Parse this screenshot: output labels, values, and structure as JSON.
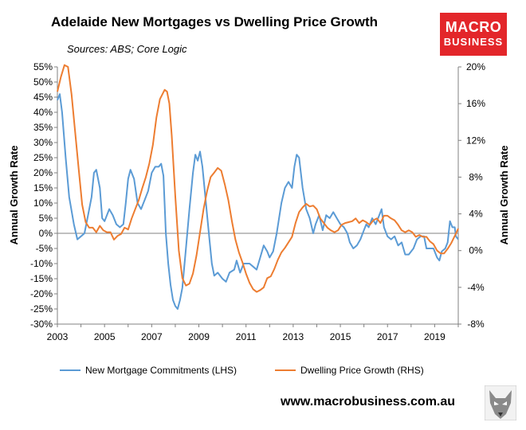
{
  "header": {
    "title": "Adelaide New Mortgages vs Dwelling Price Growth",
    "subtitle": "Sources: ABS; Core Logic"
  },
  "logo": {
    "line1": "MACRO",
    "line2": "BUSINESS",
    "color": "#e3262a",
    "icon": "wolf-icon"
  },
  "footer": {
    "website": "www.macrobusiness.com.au"
  },
  "chart_data": {
    "type": "line",
    "title": "Adelaide New Mortgages vs Dwelling Price Growth",
    "xlim": [
      2003,
      2020
    ],
    "x_tick_labels": [
      "2003",
      "2005",
      "2007",
      "2009",
      "2011",
      "2013",
      "2015",
      "2017",
      "2019"
    ],
    "y_left": {
      "label": "Annual Growth Rate",
      "range": [
        -30,
        55
      ],
      "tick_labels": [
        "55%",
        "50%",
        "45%",
        "40%",
        "35%",
        "30%",
        "25%",
        "20%",
        "15%",
        "10%",
        "5%",
        "0%",
        "-5%",
        "-10%",
        "-15%",
        "-20%",
        "-25%",
        "-30%"
      ]
    },
    "y_right": {
      "label": "Annual Growth Rate",
      "range": [
        -8,
        20
      ],
      "tick_labels": [
        "20%",
        "16%",
        "12%",
        "8%",
        "4%",
        "0%",
        "-4%",
        "-8%"
      ]
    },
    "grid": false,
    "legend_position": "bottom",
    "series": [
      {
        "name": "New Mortgage Commitments (LHS)",
        "axis": "left",
        "color": "#5b9bd5",
        "points": [
          [
            2003.0,
            44
          ],
          [
            2003.1,
            46
          ],
          [
            2003.2,
            40
          ],
          [
            2003.35,
            25
          ],
          [
            2003.5,
            12
          ],
          [
            2003.7,
            3
          ],
          [
            2003.85,
            -2
          ],
          [
            2004.0,
            -1
          ],
          [
            2004.15,
            0
          ],
          [
            2004.3,
            6
          ],
          [
            2004.45,
            12
          ],
          [
            2004.55,
            20
          ],
          [
            2004.65,
            21
          ],
          [
            2004.8,
            15
          ],
          [
            2004.9,
            5
          ],
          [
            2005.0,
            4
          ],
          [
            2005.2,
            8
          ],
          [
            2005.35,
            6
          ],
          [
            2005.5,
            3
          ],
          [
            2005.65,
            2
          ],
          [
            2005.8,
            3
          ],
          [
            2005.9,
            10
          ],
          [
            2006.0,
            18
          ],
          [
            2006.1,
            21
          ],
          [
            2006.25,
            18
          ],
          [
            2006.4,
            10
          ],
          [
            2006.55,
            8
          ],
          [
            2006.7,
            11
          ],
          [
            2006.85,
            14
          ],
          [
            2007.0,
            20
          ],
          [
            2007.15,
            22
          ],
          [
            2007.3,
            22
          ],
          [
            2007.4,
            23
          ],
          [
            2007.5,
            19
          ],
          [
            2007.6,
            0
          ],
          [
            2007.7,
            -10
          ],
          [
            2007.8,
            -17
          ],
          [
            2007.9,
            -22
          ],
          [
            2008.0,
            -24
          ],
          [
            2008.1,
            -25
          ],
          [
            2008.2,
            -22
          ],
          [
            2008.3,
            -18
          ],
          [
            2008.45,
            -5
          ],
          [
            2008.6,
            8
          ],
          [
            2008.75,
            20
          ],
          [
            2008.85,
            26
          ],
          [
            2008.95,
            24
          ],
          [
            2009.05,
            27
          ],
          [
            2009.15,
            22
          ],
          [
            2009.3,
            10
          ],
          [
            2009.45,
            -2
          ],
          [
            2009.55,
            -10
          ],
          [
            2009.65,
            -14
          ],
          [
            2009.8,
            -13
          ],
          [
            2010.0,
            -15
          ],
          [
            2010.15,
            -16
          ],
          [
            2010.3,
            -13
          ],
          [
            2010.5,
            -12
          ],
          [
            2010.6,
            -9
          ],
          [
            2010.75,
            -13
          ],
          [
            2010.9,
            -10
          ],
          [
            2011.0,
            -10
          ],
          [
            2011.15,
            -10
          ],
          [
            2011.3,
            -11
          ],
          [
            2011.45,
            -12
          ],
          [
            2011.6,
            -8
          ],
          [
            2011.75,
            -4
          ],
          [
            2011.9,
            -6
          ],
          [
            2012.0,
            -8
          ],
          [
            2012.15,
            -6
          ],
          [
            2012.3,
            0
          ],
          [
            2012.5,
            10
          ],
          [
            2012.65,
            15
          ],
          [
            2012.8,
            17
          ],
          [
            2012.95,
            15
          ],
          [
            2013.05,
            22
          ],
          [
            2013.15,
            26
          ],
          [
            2013.25,
            25
          ],
          [
            2013.4,
            15
          ],
          [
            2013.55,
            8
          ],
          [
            2013.7,
            5
          ],
          [
            2013.85,
            0
          ],
          [
            2013.95,
            3
          ],
          [
            2014.1,
            6
          ],
          [
            2014.25,
            1
          ],
          [
            2014.4,
            6
          ],
          [
            2014.55,
            5
          ],
          [
            2014.7,
            7
          ],
          [
            2014.85,
            5
          ],
          [
            2015.0,
            3
          ],
          [
            2015.15,
            2
          ],
          [
            2015.3,
            0
          ],
          [
            2015.4,
            -3
          ],
          [
            2015.55,
            -5
          ],
          [
            2015.7,
            -4
          ],
          [
            2015.85,
            -2
          ],
          [
            2016.0,
            1
          ],
          [
            2016.1,
            3
          ],
          [
            2016.2,
            2
          ],
          [
            2016.35,
            5
          ],
          [
            2016.5,
            3
          ],
          [
            2016.65,
            6
          ],
          [
            2016.75,
            8
          ],
          [
            2016.85,
            2
          ],
          [
            2017.0,
            -1
          ],
          [
            2017.15,
            -2
          ],
          [
            2017.3,
            -1
          ],
          [
            2017.45,
            -4
          ],
          [
            2017.6,
            -3
          ],
          [
            2017.75,
            -7
          ],
          [
            2017.9,
            -7
          ],
          [
            2018.1,
            -5
          ],
          [
            2018.25,
            -2
          ],
          [
            2018.4,
            -1
          ],
          [
            2018.55,
            -1
          ],
          [
            2018.65,
            -5
          ],
          [
            2018.8,
            -5
          ],
          [
            2018.95,
            -5
          ],
          [
            2019.1,
            -8
          ],
          [
            2019.2,
            -9
          ],
          [
            2019.3,
            -6
          ],
          [
            2019.45,
            -5
          ],
          [
            2019.55,
            -3
          ],
          [
            2019.65,
            4
          ],
          [
            2019.75,
            2
          ],
          [
            2019.85,
            2
          ],
          [
            2019.9,
            -1
          ],
          [
            2020.0,
            -2
          ]
        ]
      },
      {
        "name": "Dwelling Price Growth (RHS)",
        "axis": "right",
        "color": "#ed7d31",
        "points": [
          [
            2003.0,
            17.3
          ],
          [
            2003.15,
            18.9
          ],
          [
            2003.3,
            20.2
          ],
          [
            2003.45,
            20.0
          ],
          [
            2003.6,
            17.0
          ],
          [
            2003.75,
            13.0
          ],
          [
            2003.9,
            9.0
          ],
          [
            2004.05,
            5.0
          ],
          [
            2004.2,
            3.1
          ],
          [
            2004.35,
            2.5
          ],
          [
            2004.5,
            2.5
          ],
          [
            2004.65,
            2.0
          ],
          [
            2004.8,
            2.7
          ],
          [
            2004.95,
            2.2
          ],
          [
            2005.1,
            2.0
          ],
          [
            2005.25,
            2.0
          ],
          [
            2005.4,
            1.2
          ],
          [
            2005.55,
            1.6
          ],
          [
            2005.7,
            1.8
          ],
          [
            2005.85,
            2.5
          ],
          [
            2006.0,
            2.3
          ],
          [
            2006.15,
            3.5
          ],
          [
            2006.3,
            4.5
          ],
          [
            2006.45,
            5.5
          ],
          [
            2006.6,
            6.8
          ],
          [
            2006.75,
            8.0
          ],
          [
            2006.9,
            9.5
          ],
          [
            2007.05,
            11.5
          ],
          [
            2007.2,
            14.5
          ],
          [
            2007.35,
            16.5
          ],
          [
            2007.55,
            17.5
          ],
          [
            2007.65,
            17.3
          ],
          [
            2007.75,
            16.0
          ],
          [
            2007.85,
            12.5
          ],
          [
            2008.0,
            6.0
          ],
          [
            2008.15,
            0.0
          ],
          [
            2008.3,
            -3.0
          ],
          [
            2008.45,
            -3.8
          ],
          [
            2008.6,
            -3.6
          ],
          [
            2008.75,
            -2.5
          ],
          [
            2008.9,
            -0.5
          ],
          [
            2009.05,
            2.0
          ],
          [
            2009.2,
            4.5
          ],
          [
            2009.35,
            6.5
          ],
          [
            2009.5,
            8.0
          ],
          [
            2009.65,
            8.5
          ],
          [
            2009.8,
            9.0
          ],
          [
            2009.95,
            8.7
          ],
          [
            2010.1,
            7.2
          ],
          [
            2010.25,
            5.5
          ],
          [
            2010.4,
            3.2
          ],
          [
            2010.55,
            1.2
          ],
          [
            2010.7,
            -0.2
          ],
          [
            2010.85,
            -1.3
          ],
          [
            2011.0,
            -2.5
          ],
          [
            2011.15,
            -3.5
          ],
          [
            2011.3,
            -4.2
          ],
          [
            2011.45,
            -4.5
          ],
          [
            2011.6,
            -4.3
          ],
          [
            2011.75,
            -4.0
          ],
          [
            2011.9,
            -3.0
          ],
          [
            2012.05,
            -2.8
          ],
          [
            2012.2,
            -2.0
          ],
          [
            2012.35,
            -1.0
          ],
          [
            2012.5,
            -0.2
          ],
          [
            2012.65,
            0.3
          ],
          [
            2012.8,
            0.9
          ],
          [
            2012.95,
            1.5
          ],
          [
            2013.1,
            3.0
          ],
          [
            2013.25,
            4.2
          ],
          [
            2013.4,
            4.7
          ],
          [
            2013.55,
            5.1
          ],
          [
            2013.7,
            4.8
          ],
          [
            2013.85,
            4.9
          ],
          [
            2014.0,
            4.5
          ],
          [
            2014.15,
            3.5
          ],
          [
            2014.3,
            3.0
          ],
          [
            2014.45,
            2.5
          ],
          [
            2014.6,
            2.2
          ],
          [
            2014.75,
            2.0
          ],
          [
            2014.9,
            2.2
          ],
          [
            2015.05,
            2.8
          ],
          [
            2015.2,
            3.0
          ],
          [
            2015.35,
            3.1
          ],
          [
            2015.5,
            3.2
          ],
          [
            2015.65,
            3.5
          ],
          [
            2015.8,
            3.0
          ],
          [
            2015.95,
            3.3
          ],
          [
            2016.1,
            3.1
          ],
          [
            2016.25,
            2.8
          ],
          [
            2016.4,
            3.3
          ],
          [
            2016.55,
            3.5
          ],
          [
            2016.7,
            3.0
          ],
          [
            2016.85,
            3.8
          ],
          [
            2017.0,
            3.8
          ],
          [
            2017.15,
            3.5
          ],
          [
            2017.3,
            3.3
          ],
          [
            2017.45,
            2.8
          ],
          [
            2017.6,
            2.2
          ],
          [
            2017.75,
            2.0
          ],
          [
            2017.9,
            2.2
          ],
          [
            2018.05,
            2.0
          ],
          [
            2018.2,
            1.5
          ],
          [
            2018.35,
            1.7
          ],
          [
            2018.5,
            1.5
          ],
          [
            2018.65,
            1.5
          ],
          [
            2018.8,
            1.0
          ],
          [
            2018.95,
            0.7
          ],
          [
            2019.1,
            0.0
          ],
          [
            2019.25,
            -0.3
          ],
          [
            2019.4,
            -0.3
          ],
          [
            2019.55,
            0.2
          ],
          [
            2019.7,
            0.8
          ],
          [
            2019.85,
            1.6
          ],
          [
            2020.0,
            2.4
          ]
        ]
      }
    ]
  }
}
